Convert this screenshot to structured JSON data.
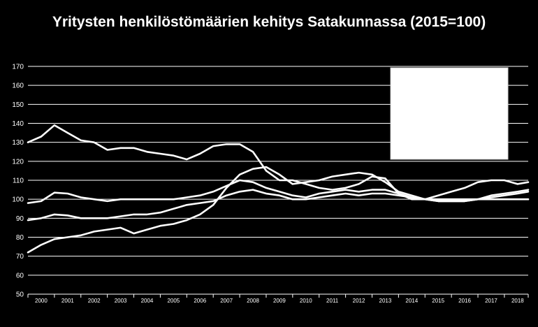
{
  "chart_data": {
    "type": "line",
    "title": "Yritysten henkilöstömäärien kehitys Satakunnassa (2015=100)",
    "xlabel": "",
    "ylabel": "",
    "ylim": [
      50,
      170
    ],
    "yticks": [
      50,
      60,
      70,
      80,
      90,
      100,
      110,
      120,
      130,
      140,
      150,
      160,
      170
    ],
    "xlim": [
      2000,
      2018.9
    ],
    "xticks": [
      "2000",
      "2001",
      "2002",
      "2003",
      "2004",
      "2005",
      "2006",
      "2007",
      "2008",
      "2009",
      "2010",
      "2011",
      "2012",
      "2013",
      "2014",
      "2015",
      "2016",
      "2017",
      "2018"
    ],
    "grid": true,
    "legend": "top-right (blank box)",
    "line_color": "#ffffff",
    "series": [
      {
        "x": [
          2000,
          2000.5,
          2001,
          2001.5,
          2002,
          2002.5,
          2003,
          2003.5,
          2004,
          2004.5,
          2005,
          2005.5,
          2006,
          2006.5,
          2007,
          2007.5,
          2008,
          2008.5,
          2009,
          2009.5,
          2010,
          2010.5,
          2011,
          2011.5,
          2012,
          2012.5,
          2013,
          2013.5,
          2014,
          2014.5,
          2015,
          2015.5,
          2016,
          2016.5,
          2017,
          2017.5,
          2018,
          2018.5,
          2018.9
        ],
        "values": [
          130,
          133,
          139,
          135,
          131,
          130,
          126,
          127,
          127,
          125,
          124,
          123,
          121,
          124,
          128,
          129,
          129,
          125,
          115,
          110,
          110,
          108,
          106,
          105,
          106,
          108,
          112,
          111,
          103,
          100,
          100,
          99,
          99,
          99,
          100,
          100,
          100,
          100,
          100
        ]
      },
      {
        "x": [
          2000,
          2000.5,
          2001,
          2001.5,
          2002,
          2002.5,
          2003,
          2003.5,
          2004,
          2004.5,
          2005,
          2005.5,
          2006,
          2006.5,
          2007,
          2007.5,
          2008,
          2008.5,
          2009,
          2009.5,
          2010,
          2010.5,
          2011,
          2011.5,
          2012,
          2012.5,
          2013,
          2013.5,
          2014,
          2014.5,
          2015,
          2015.5,
          2016,
          2016.5,
          2017,
          2017.5,
          2018,
          2018.5,
          2018.9
        ],
        "values": [
          98,
          99,
          103.5,
          103,
          101,
          100,
          99,
          100,
          100,
          100,
          100,
          100,
          101,
          102,
          104,
          107,
          110,
          109,
          106,
          104,
          102,
          101,
          103,
          104,
          105,
          104,
          105,
          105,
          103,
          101,
          100,
          100,
          100,
          100,
          100,
          101,
          102,
          103,
          104
        ]
      },
      {
        "x": [
          2000,
          2000.5,
          2001,
          2001.5,
          2002,
          2002.5,
          2003,
          2003.5,
          2004,
          2004.5,
          2005,
          2005.5,
          2006,
          2006.5,
          2007,
          2007.5,
          2008,
          2008.5,
          2009,
          2009.5,
          2010,
          2010.5,
          2011,
          2011.5,
          2012,
          2012.5,
          2013,
          2013.5,
          2014,
          2014.5,
          2015,
          2015.5,
          2016,
          2016.5,
          2017,
          2017.5,
          2018,
          2018.5,
          2018.9
        ],
        "values": [
          89,
          90,
          92,
          91.5,
          90,
          90,
          90,
          91,
          92,
          92,
          93,
          95,
          97,
          98,
          99,
          102,
          104,
          105,
          103,
          102,
          100,
          100,
          101,
          102,
          103,
          102,
          103,
          103,
          102,
          101,
          100,
          99,
          99,
          99,
          100,
          102,
          103,
          104,
          105
        ]
      },
      {
        "x": [
          2000,
          2000.5,
          2001,
          2001.5,
          2002,
          2002.5,
          2003,
          2003.5,
          2004,
          2004.5,
          2005,
          2005.5,
          2006,
          2006.5,
          2007,
          2007.5,
          2008,
          2008.5,
          2009,
          2009.5,
          2010,
          2010.5,
          2011,
          2011.5,
          2012,
          2012.5,
          2013,
          2013.5,
          2014,
          2014.5,
          2015,
          2015.5,
          2016,
          2016.5,
          2017,
          2017.5,
          2018,
          2018.5,
          2018.9
        ],
        "values": [
          72,
          76,
          79,
          80,
          81,
          83,
          84,
          85,
          82,
          84,
          86,
          87,
          89,
          92,
          97,
          106,
          113,
          116,
          117,
          113,
          108,
          109,
          110,
          112,
          113,
          114,
          113,
          109,
          104,
          102,
          100,
          102,
          104,
          106,
          109,
          110,
          110,
          108,
          109
        ]
      }
    ]
  }
}
